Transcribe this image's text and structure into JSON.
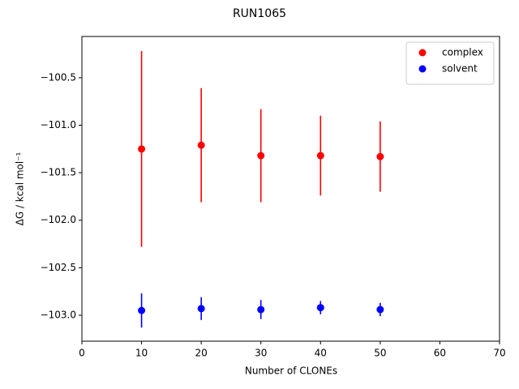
{
  "chart_data": {
    "type": "scatter",
    "title": "RUN1065",
    "xlabel": "Number of CLONEs",
    "ylabel": "ΔG / kcal mol⁻¹",
    "x": [
      10,
      20,
      30,
      40,
      50
    ],
    "series": [
      {
        "name": "complex",
        "color": "#ff0000",
        "values": [
          -101.25,
          -101.21,
          -101.32,
          -101.32,
          -101.33
        ],
        "errors": [
          1.03,
          0.6,
          0.49,
          0.42,
          0.37
        ]
      },
      {
        "name": "solvent",
        "color": "#0000ff",
        "values": [
          -102.95,
          -102.93,
          -102.94,
          -102.92,
          -102.94
        ],
        "errors": [
          0.18,
          0.12,
          0.1,
          0.07,
          0.07
        ]
      }
    ],
    "xlim": [
      0,
      70
    ],
    "xticks": [
      0,
      10,
      20,
      30,
      40,
      50,
      60,
      70
    ],
    "ylim": [
      -103.273,
      -100.066
    ],
    "yticks": [
      {
        "value": -100.5,
        "label": "−100.5"
      },
      {
        "value": -101.0,
        "label": "−101.0"
      },
      {
        "value": -101.5,
        "label": "−101.5"
      },
      {
        "value": -102.0,
        "label": "−102.0"
      },
      {
        "value": -102.5,
        "label": "−102.5"
      },
      {
        "value": -103.0,
        "label": "−103.0"
      }
    ],
    "legend": "upper right",
    "grid": false
  }
}
